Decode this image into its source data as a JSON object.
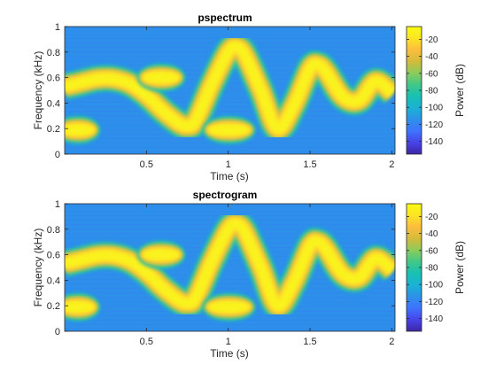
{
  "chart_data": [
    {
      "type": "heatmap",
      "title": "pspectrum",
      "xlabel": "Time (s)",
      "ylabel": "Frequency (kHz)",
      "xlim": [
        0,
        2.02
      ],
      "ylim": [
        0,
        1
      ],
      "xticks": [
        "0.5",
        "1",
        "1.5",
        "2"
      ],
      "xtick_values": [
        0.5,
        1,
        1.5,
        2
      ],
      "yticks": [
        "0",
        "0.2",
        "0.4",
        "0.6",
        "0.8",
        "1"
      ],
      "ytick_values": [
        0,
        0.2,
        0.4,
        0.6,
        0.8,
        1
      ],
      "colorbar": {
        "label": "Power (dB)",
        "ticks": [
          "-20",
          "-40",
          "-60",
          "-80",
          "-100",
          "-120",
          "-140"
        ],
        "tick_values": [
          -20,
          -40,
          -60,
          -80,
          -100,
          -120,
          -140
        ],
        "range": [
          -155,
          -5
        ]
      },
      "background_level_db": -115,
      "signal_level_db": -10,
      "components": [
        {
          "name": "swept tone",
          "t": [
            0.0,
            0.1,
            0.2,
            0.3,
            0.4,
            0.5,
            0.6,
            0.7,
            0.75,
            0.8,
            0.9,
            1.0,
            1.05,
            1.1,
            1.2,
            1.3,
            1.4,
            1.5,
            1.55,
            1.6,
            1.7,
            1.8,
            1.9,
            2.0
          ],
          "f_khz": [
            0.53,
            0.56,
            0.59,
            0.59,
            0.55,
            0.46,
            0.34,
            0.24,
            0.22,
            0.26,
            0.55,
            0.8,
            0.84,
            0.78,
            0.5,
            0.2,
            0.38,
            0.67,
            0.7,
            0.64,
            0.45,
            0.42,
            0.57,
            0.48
          ]
        },
        {
          "name": "tone burst 1",
          "t_start": 0.0,
          "t_end": 0.16,
          "f_khz": 0.19
        },
        {
          "name": "tone burst 2",
          "t_start": 0.5,
          "t_end": 0.68,
          "f_khz": 0.6
        },
        {
          "name": "tone burst 3",
          "t_start": 0.9,
          "t_end": 1.11,
          "f_khz": 0.19
        }
      ]
    },
    {
      "type": "heatmap",
      "title": "spectrogram",
      "xlabel": "Time (s)",
      "ylabel": "Frequency (kHz)",
      "xlim": [
        0,
        2.02
      ],
      "ylim": [
        0,
        1
      ],
      "xticks": [
        "0.5",
        "1",
        "1.5",
        "2"
      ],
      "xtick_values": [
        0.5,
        1,
        1.5,
        2
      ],
      "yticks": [
        "0",
        "0.2",
        "0.4",
        "0.6",
        "0.8",
        "1"
      ],
      "ytick_values": [
        0,
        0.2,
        0.4,
        0.6,
        0.8,
        1
      ],
      "colorbar": {
        "label": "Power (dB)",
        "ticks": [
          "-20",
          "-40",
          "-60",
          "-80",
          "-100",
          "-120",
          "-140"
        ],
        "tick_values": [
          -20,
          -40,
          -60,
          -80,
          -100,
          -120,
          -140
        ],
        "range": [
          -155,
          -5
        ]
      },
      "background_level_db": -115,
      "signal_level_db": -10,
      "components": [
        {
          "name": "swept tone",
          "t": [
            0.0,
            0.1,
            0.2,
            0.3,
            0.4,
            0.5,
            0.6,
            0.7,
            0.75,
            0.8,
            0.9,
            1.0,
            1.05,
            1.1,
            1.2,
            1.3,
            1.4,
            1.5,
            1.55,
            1.6,
            1.7,
            1.8,
            1.9,
            2.0
          ],
          "f_khz": [
            0.53,
            0.56,
            0.59,
            0.59,
            0.55,
            0.46,
            0.34,
            0.24,
            0.22,
            0.26,
            0.55,
            0.8,
            0.84,
            0.78,
            0.5,
            0.2,
            0.38,
            0.67,
            0.7,
            0.64,
            0.45,
            0.42,
            0.57,
            0.48
          ]
        },
        {
          "name": "tone burst 1",
          "t_start": 0.0,
          "t_end": 0.16,
          "f_khz": 0.19
        },
        {
          "name": "tone burst 2",
          "t_start": 0.5,
          "t_end": 0.68,
          "f_khz": 0.6
        },
        {
          "name": "tone burst 3",
          "t_start": 0.9,
          "t_end": 1.11,
          "f_khz": 0.19
        }
      ]
    }
  ],
  "colormap": {
    "name": "parula",
    "stops": [
      "#3e26a8",
      "#4744e8",
      "#3e73ff",
      "#2c91e8",
      "#1ab2d4",
      "#18c0b2",
      "#41c887",
      "#8ccc5a",
      "#d3bb3b",
      "#fdbd3c",
      "#fbe424",
      "#f9fb15"
    ]
  }
}
